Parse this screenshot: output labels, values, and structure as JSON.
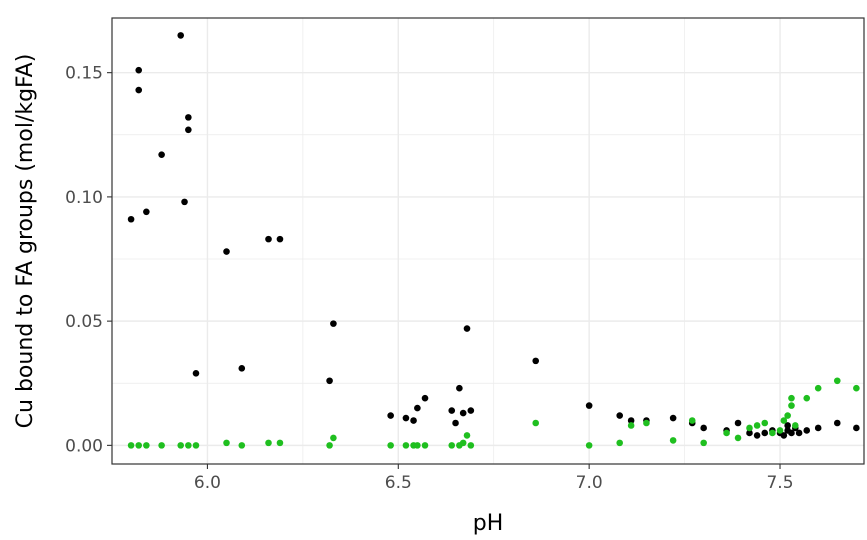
{
  "chart_data": {
    "type": "scatter",
    "title": "",
    "xlabel": "pH",
    "ylabel": "Cu bound to FA groups (mol/kgFA)",
    "xlim": [
      5.75,
      7.72
    ],
    "ylim": [
      -0.0075,
      0.172
    ],
    "x_ticks": [
      6.0,
      6.5,
      7.0,
      7.5
    ],
    "x_tick_labels": [
      "6.0",
      "6.5",
      "7.0",
      "7.5"
    ],
    "y_ticks": [
      0.0,
      0.05,
      0.1,
      0.15
    ],
    "y_tick_labels": [
      "0.00",
      "0.05",
      "0.10",
      "0.15"
    ],
    "grid": true,
    "legend": "none",
    "series": [
      {
        "color": "#000000",
        "points": [
          [
            5.93,
            0.165
          ],
          [
            5.82,
            0.151
          ],
          [
            5.82,
            0.143
          ],
          [
            5.95,
            0.132
          ],
          [
            5.95,
            0.127
          ],
          [
            5.88,
            0.117
          ],
          [
            5.94,
            0.098
          ],
          [
            5.84,
            0.094
          ],
          [
            5.8,
            0.091
          ],
          [
            6.05,
            0.078
          ],
          [
            6.16,
            0.083
          ],
          [
            6.19,
            0.083
          ],
          [
            5.97,
            0.029
          ],
          [
            6.09,
            0.031
          ],
          [
            6.33,
            0.049
          ],
          [
            6.32,
            0.026
          ],
          [
            6.68,
            0.047
          ],
          [
            6.86,
            0.034
          ],
          [
            6.66,
            0.023
          ],
          [
            6.57,
            0.019
          ],
          [
            6.55,
            0.015
          ],
          [
            6.64,
            0.014
          ],
          [
            6.67,
            0.013
          ],
          [
            6.69,
            0.014
          ],
          [
            6.48,
            0.012
          ],
          [
            6.52,
            0.011
          ],
          [
            6.54,
            0.01
          ],
          [
            6.65,
            0.009
          ],
          [
            7.0,
            0.016
          ],
          [
            7.08,
            0.012
          ],
          [
            7.11,
            0.01
          ],
          [
            7.15,
            0.01
          ],
          [
            7.22,
            0.011
          ],
          [
            7.27,
            0.009
          ],
          [
            7.3,
            0.007
          ],
          [
            7.36,
            0.006
          ],
          [
            7.39,
            0.009
          ],
          [
            7.42,
            0.005
          ],
          [
            7.44,
            0.004
          ],
          [
            7.46,
            0.005
          ],
          [
            7.48,
            0.006
          ],
          [
            7.5,
            0.005
          ],
          [
            7.51,
            0.004
          ],
          [
            7.52,
            0.008
          ],
          [
            7.52,
            0.006
          ],
          [
            7.53,
            0.005
          ],
          [
            7.54,
            0.007
          ],
          [
            7.55,
            0.005
          ],
          [
            7.57,
            0.006
          ],
          [
            7.6,
            0.007
          ],
          [
            7.65,
            0.009
          ],
          [
            7.7,
            0.007
          ]
        ]
      },
      {
        "color": "#1fbf1f",
        "points": [
          [
            5.8,
            0.0
          ],
          [
            5.82,
            0.0
          ],
          [
            5.84,
            0.0
          ],
          [
            5.88,
            0.0
          ],
          [
            5.93,
            0.0
          ],
          [
            5.95,
            0.0
          ],
          [
            5.97,
            0.0
          ],
          [
            6.05,
            0.001
          ],
          [
            6.09,
            0.0
          ],
          [
            6.16,
            0.001
          ],
          [
            6.19,
            0.001
          ],
          [
            6.32,
            0.0
          ],
          [
            6.33,
            0.003
          ],
          [
            6.48,
            0.0
          ],
          [
            6.52,
            0.0
          ],
          [
            6.54,
            0.0
          ],
          [
            6.55,
            0.0
          ],
          [
            6.57,
            0.0
          ],
          [
            6.64,
            0.0
          ],
          [
            6.66,
            0.0
          ],
          [
            6.67,
            0.001
          ],
          [
            6.68,
            0.004
          ],
          [
            6.69,
            0.0
          ],
          [
            6.86,
            0.009
          ],
          [
            7.0,
            0.0
          ],
          [
            7.08,
            0.001
          ],
          [
            7.11,
            0.008
          ],
          [
            7.15,
            0.009
          ],
          [
            7.22,
            0.002
          ],
          [
            7.27,
            0.01
          ],
          [
            7.3,
            0.001
          ],
          [
            7.36,
            0.005
          ],
          [
            7.39,
            0.003
          ],
          [
            7.42,
            0.007
          ],
          [
            7.44,
            0.008
          ],
          [
            7.46,
            0.009
          ],
          [
            7.48,
            0.005
          ],
          [
            7.5,
            0.006
          ],
          [
            7.51,
            0.01
          ],
          [
            7.52,
            0.012
          ],
          [
            7.53,
            0.019
          ],
          [
            7.53,
            0.016
          ],
          [
            7.54,
            0.008
          ],
          [
            7.57,
            0.019
          ],
          [
            7.6,
            0.023
          ],
          [
            7.65,
            0.026
          ],
          [
            7.7,
            0.023
          ]
        ]
      }
    ]
  }
}
